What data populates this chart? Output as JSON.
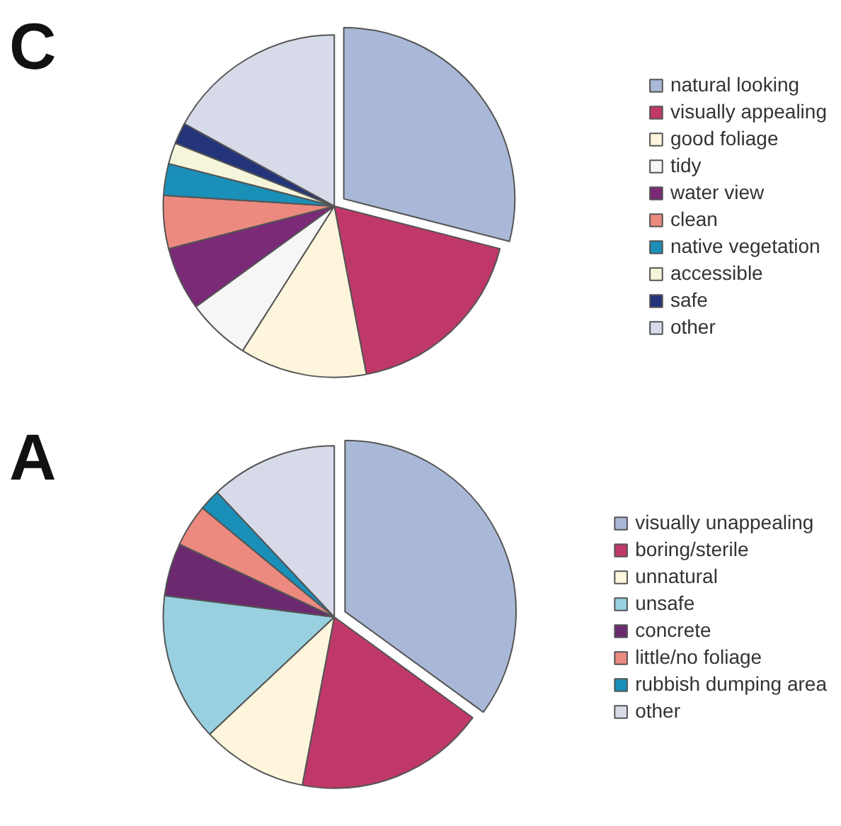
{
  "chart_data": [
    {
      "type": "pie",
      "title": "C",
      "legend": "right",
      "categories": [
        "natural looking",
        "visually appealing",
        "good foliage",
        "tidy",
        "water view",
        "clean",
        "native vegetation",
        "accessible",
        "safe",
        "other"
      ],
      "values": [
        29,
        18,
        12,
        6,
        6,
        5,
        3,
        2,
        2,
        17
      ],
      "colors": [
        "#aab8d8",
        "#c0386a",
        "#fdf6dc",
        "#f6f6f6",
        "#7b2a78",
        "#ec8a80",
        "#1a8fb8",
        "#f5f5dc",
        "#24347a",
        "#d7dae8"
      ]
    },
    {
      "type": "pie",
      "title": "A",
      "legend": "right",
      "categories": [
        "visually unappealing",
        "boring/sterile",
        "unnatural",
        "unsafe",
        "concrete",
        "little/no foliage",
        "rubbish dumping area",
        "other"
      ],
      "values": [
        35,
        18,
        10,
        14,
        5,
        4,
        2,
        12
      ],
      "colors": [
        "#aab8d8",
        "#c0386a",
        "#fdf6dc",
        "#98d0e0",
        "#6b2a70",
        "#ec8a80",
        "#1a8fb8",
        "#d7dae8"
      ]
    }
  ]
}
